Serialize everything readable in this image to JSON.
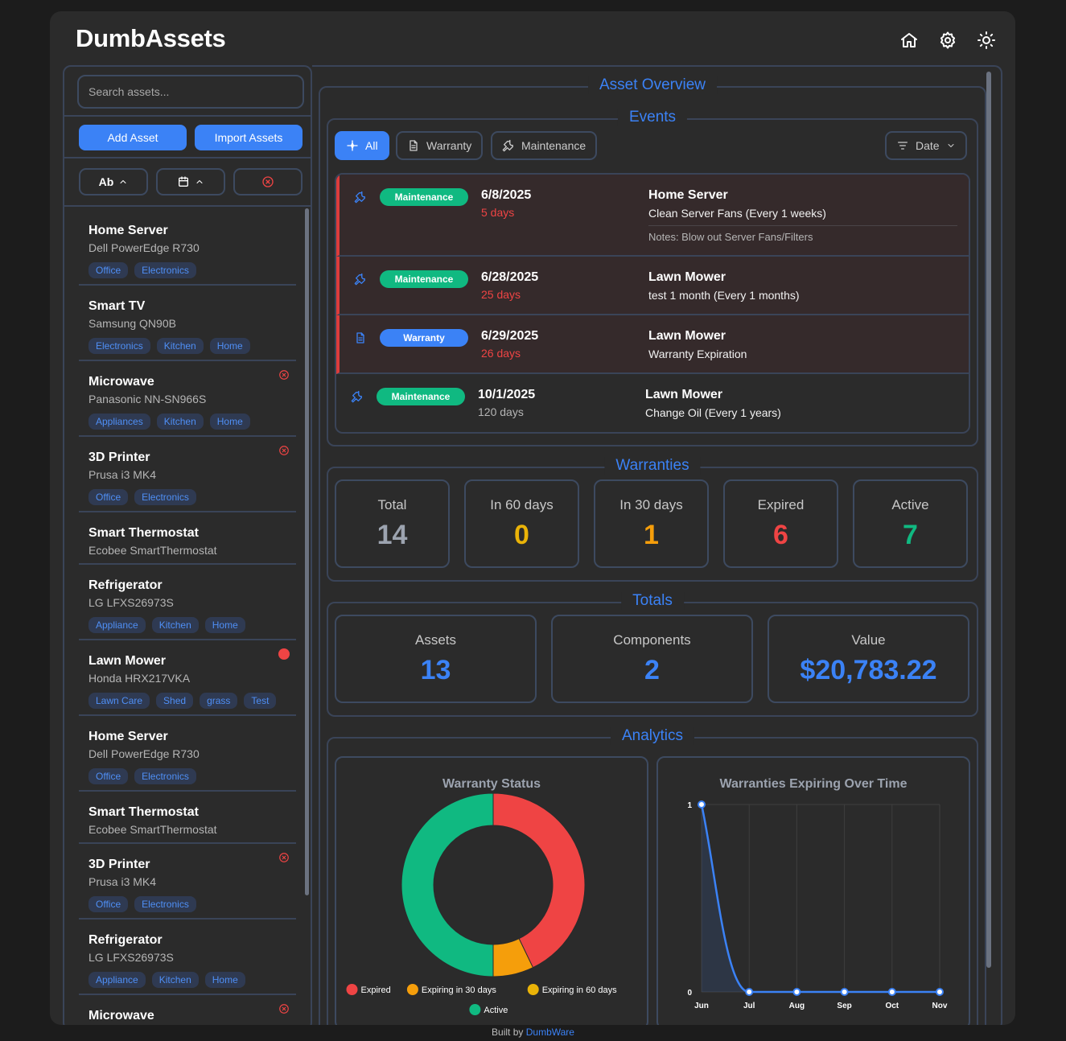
{
  "app": {
    "title": "DumbAssets"
  },
  "search": {
    "placeholder": "Search assets..."
  },
  "sidebar": {
    "add_label": "Add Asset",
    "import_label": "Import Assets",
    "sort_name_label": "Ab",
    "assets": [
      {
        "name": "Home Server",
        "model": "Dell PowerEdge R730",
        "tags": [
          "Office",
          "Electronics"
        ],
        "flag": ""
      },
      {
        "name": "Smart TV",
        "model": "Samsung QN90B",
        "tags": [
          "Electronics",
          "Kitchen",
          "Home"
        ],
        "flag": ""
      },
      {
        "name": "Microwave",
        "model": "Panasonic NN-SN966S",
        "tags": [
          "Appliances",
          "Kitchen",
          "Home"
        ],
        "flag": "expired"
      },
      {
        "name": "3D Printer",
        "model": "Prusa i3 MK4",
        "tags": [
          "Office",
          "Electronics"
        ],
        "flag": "expired"
      },
      {
        "name": "Smart Thermostat",
        "model": "Ecobee SmartThermostat",
        "tags": [],
        "flag": ""
      },
      {
        "name": "Refrigerator",
        "model": "LG LFXS26973S",
        "tags": [
          "Appliance",
          "Kitchen",
          "Home"
        ],
        "flag": ""
      },
      {
        "name": "Lawn Mower",
        "model": "Honda HRX217VKA",
        "tags": [
          "Lawn Care",
          "Shed",
          "grass",
          "Test"
        ],
        "flag": "dot"
      },
      {
        "name": "Home Server",
        "model": "Dell PowerEdge R730",
        "tags": [
          "Office",
          "Electronics"
        ],
        "flag": ""
      },
      {
        "name": "Smart Thermostat",
        "model": "Ecobee SmartThermostat",
        "tags": [],
        "flag": ""
      },
      {
        "name": "3D Printer",
        "model": "Prusa i3 MK4",
        "tags": [
          "Office",
          "Electronics"
        ],
        "flag": "expired"
      },
      {
        "name": "Refrigerator",
        "model": "LG LFXS26973S",
        "tags": [
          "Appliance",
          "Kitchen",
          "Home"
        ],
        "flag": ""
      },
      {
        "name": "Microwave",
        "model": "",
        "tags": [],
        "flag": "expired"
      }
    ]
  },
  "overview": {
    "title": "Asset Overview"
  },
  "events": {
    "title": "Events",
    "filters": {
      "all": "All",
      "warranty": "Warranty",
      "maintenance": "Maintenance",
      "sort": "Date"
    },
    "items": [
      {
        "type": "Maintenance",
        "date": "6/8/2025",
        "days": "5 days",
        "asset": "Home Server",
        "desc": "Clean Server Fans (Every 1 weeks)",
        "notes": "Notes: Blow out Server Fans/Filters"
      },
      {
        "type": "Maintenance",
        "date": "6/28/2025",
        "days": "25 days",
        "asset": "Lawn Mower",
        "desc": "test 1 month (Every 1 months)"
      },
      {
        "type": "Warranty",
        "date": "6/29/2025",
        "days": "26 days",
        "asset": "Lawn Mower",
        "desc": "Warranty Expiration"
      },
      {
        "type": "Maintenance",
        "date": "10/1/2025",
        "days": "120 days",
        "asset": "Lawn Mower",
        "desc": "Change Oil (Every 1 years)"
      }
    ]
  },
  "warranties": {
    "title": "Warranties",
    "cards": [
      {
        "label": "Total",
        "value": "14",
        "color": "#9ca3af"
      },
      {
        "label": "In 60 days",
        "value": "0",
        "color": "#eab308"
      },
      {
        "label": "In 30 days",
        "value": "1",
        "color": "#f59e0b"
      },
      {
        "label": "Expired",
        "value": "6",
        "color": "#ef4444"
      },
      {
        "label": "Active",
        "value": "7",
        "color": "#10b981"
      }
    ]
  },
  "totals": {
    "title": "Totals",
    "cards": [
      {
        "label": "Assets",
        "value": "13"
      },
      {
        "label": "Components",
        "value": "2"
      },
      {
        "label": "Value",
        "value": "$20,783.22"
      }
    ]
  },
  "analytics": {
    "title": "Analytics"
  },
  "chart_data": [
    {
      "type": "pie",
      "title": "Warranty Status",
      "categories": [
        "Expired",
        "Expiring in 30 days",
        "Expiring in 60 days",
        "Active"
      ],
      "values": [
        6,
        1,
        0,
        7
      ],
      "colors": [
        "#ef4444",
        "#f59e0b",
        "#eab308",
        "#10b981"
      ],
      "legend": "bottom"
    },
    {
      "type": "area",
      "title": "Warranties Expiring Over Time",
      "categories": [
        "Jun",
        "Jul",
        "Aug",
        "Sep",
        "Oct",
        "Nov"
      ],
      "values": [
        1,
        0,
        0,
        0,
        0,
        0
      ],
      "ylim": [
        0,
        1
      ],
      "yticks": [
        "0",
        "1"
      ],
      "grid": true,
      "color": "#3b82f6"
    }
  ],
  "footer": {
    "prefix": "Built by",
    "link": "DumbWare"
  },
  "colors": {
    "accent": "#3b82f6",
    "danger": "#dc3c3c",
    "success": "#10b981"
  }
}
